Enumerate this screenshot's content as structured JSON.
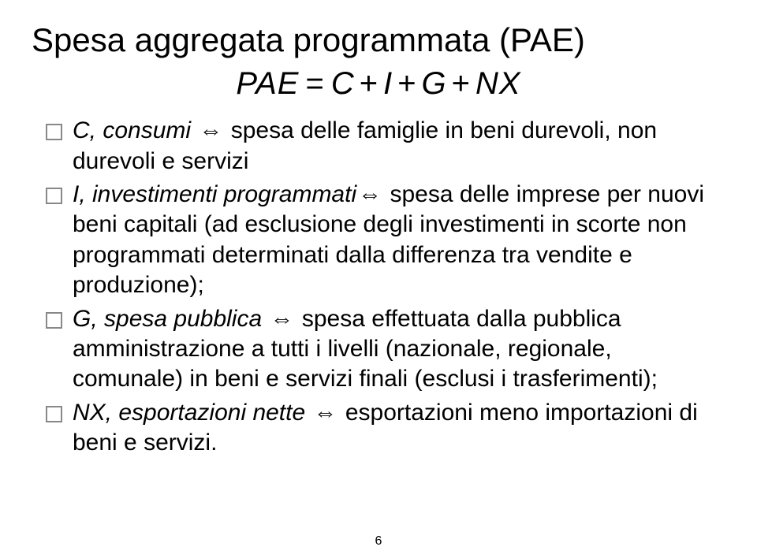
{
  "title": "Spesa aggregata programmata (PAE)",
  "formula": {
    "lhs": "PAE",
    "eq": "=",
    "terms": [
      "C",
      "I",
      "G",
      "NX"
    ],
    "op": "+"
  },
  "bullets": [
    {
      "lead": "C, consumi",
      "arrow": "⇔",
      "rest": "spesa delle famiglie in beni durevoli, non durevoli e servizi"
    },
    {
      "lead": "I, investimenti programmati",
      "arrow": "⇔",
      "rest": "spesa delle imprese per nuovi beni capitali (ad esclusione degli investimenti in scorte non programmati determinati dalla differenza tra vendite e produzione);"
    },
    {
      "lead": "G, spesa pubblica",
      "arrow": "⇔",
      "rest": "spesa effettuata dalla pubblica amministrazione a tutti i livelli (nazionale, regionale, comunale) in beni e servizi finali (esclusi i trasferimenti);"
    },
    {
      "lead": "NX, esportazioni nette",
      "arrow": "⇔",
      "rest": "esportazioni meno importazioni di beni e servizi."
    }
  ],
  "page_number": "6",
  "colors": {
    "background": "#ffffff",
    "text": "#000000",
    "bullet_border": "#888888"
  },
  "typography": {
    "title_fontsize": 42,
    "formula_fontsize": 40,
    "body_fontsize": 30,
    "font_family": "Arial"
  }
}
